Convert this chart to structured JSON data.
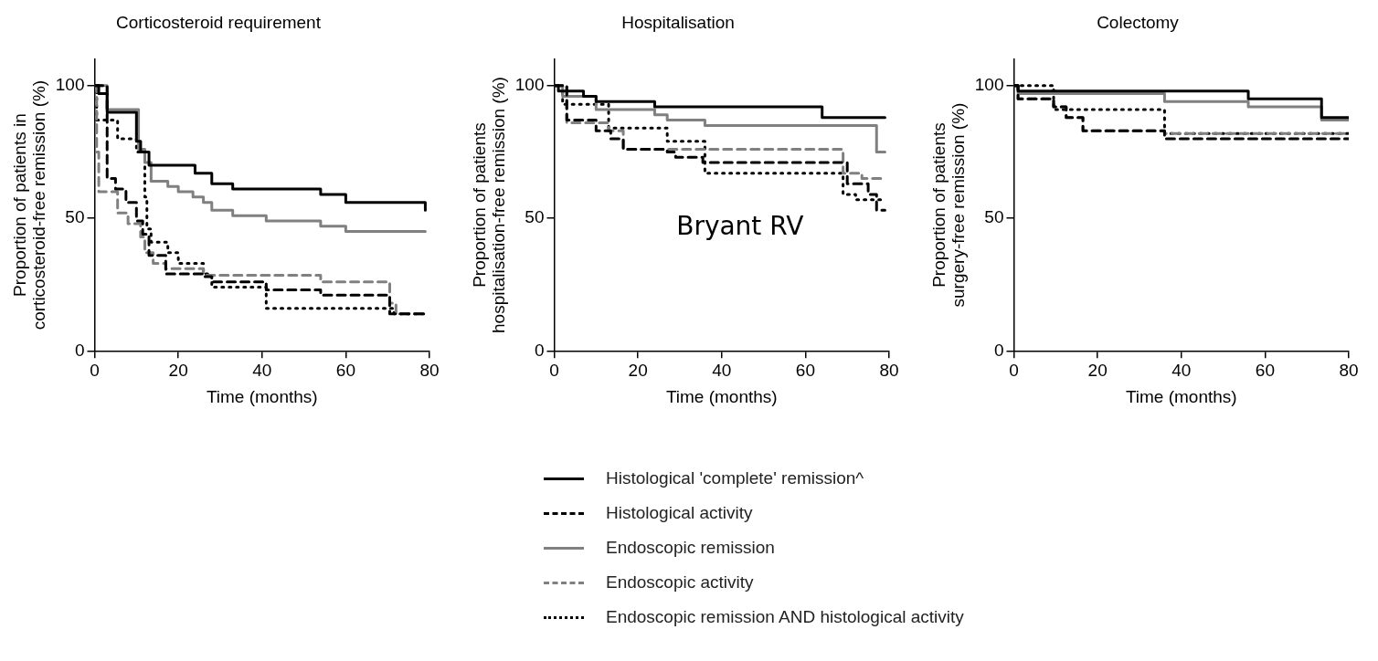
{
  "chart_data": [
    {
      "type": "step",
      "title": "Corticosteroid requirement",
      "xlabel": "Time (months)",
      "ylabel": "Proportion of patients in\ncorticosteroid-free remission (%)",
      "xlim": [
        0,
        80
      ],
      "xticks": [
        0,
        20,
        40,
        60,
        80
      ],
      "ylim": [
        0,
        110
      ],
      "yticks": [
        0,
        50,
        100
      ],
      "grid": false,
      "legend": "bottom",
      "series": [
        {
          "name": "Histological 'complete' remission^",
          "color": "#000000",
          "line_style": "solid",
          "x": [
            0,
            1,
            3,
            8,
            10,
            11,
            13,
            20,
            24,
            28,
            33,
            54,
            60,
            79
          ],
          "values": [
            100,
            97,
            90,
            90,
            79,
            75,
            70,
            70,
            67,
            63,
            61,
            59,
            56,
            53
          ]
        },
        {
          "name": "Histological activity",
          "color": "#000000",
          "line_style": "dashed",
          "x": [
            0,
            3,
            5,
            7.5,
            10,
            11.5,
            13,
            17,
            26,
            28,
            41,
            54,
            70.5,
            79
          ],
          "values": [
            100,
            65,
            61,
            56,
            49,
            44,
            36,
            29,
            28,
            26,
            23,
            21,
            14,
            14
          ]
        },
        {
          "name": "Endoscopic remission",
          "color": "#808080",
          "line_style": "solid",
          "x": [
            0,
            3,
            10.5,
            12,
            13.5,
            17.5,
            20,
            23.5,
            26,
            28,
            33,
            41,
            54,
            60,
            79
          ],
          "values": [
            100,
            91,
            76,
            71,
            64,
            62,
            60,
            58,
            56,
            53,
            51,
            49,
            47,
            45,
            45
          ]
        },
        {
          "name": "Endoscopic activity",
          "color": "#808080",
          "line_style": "dashed",
          "x": [
            0,
            0.5,
            1,
            5.5,
            8,
            11,
            12,
            14,
            17,
            26,
            54,
            70.5,
            72,
            79
          ],
          "values": [
            100,
            75,
            60,
            52,
            48,
            43,
            37,
            33,
            31,
            28.5,
            26,
            18,
            14,
            14
          ]
        },
        {
          "name": "Endoscopic remission AND histological activity",
          "color": "#000000",
          "line_style": "dotted",
          "x": [
            0,
            0.5,
            5.5,
            10,
            12,
            12.5,
            13.5,
            17.5,
            20,
            26,
            28,
            41,
            71.5,
            79
          ],
          "values": [
            100,
            87,
            80,
            75,
            58,
            46,
            41,
            37,
            33,
            29,
            24,
            16,
            14,
            14
          ]
        }
      ]
    },
    {
      "type": "step",
      "title": "Hospitalisation",
      "xlabel": "Time (months)",
      "ylabel": "Proportion of patients\nhospitalisation-free remission (%)",
      "xlim": [
        0,
        80
      ],
      "xticks": [
        0,
        20,
        40,
        60,
        80
      ],
      "ylim": [
        0,
        110
      ],
      "yticks": [
        0,
        50,
        100
      ],
      "grid": false,
      "annotations": [
        "Bryant RV"
      ],
      "series": [
        {
          "color": "#000000",
          "line_style": "solid",
          "x": [
            0,
            1,
            7,
            10,
            24,
            64,
            79
          ],
          "values": [
            100,
            98,
            96,
            94,
            92,
            88,
            88
          ]
        },
        {
          "color": "#000000",
          "line_style": "dashed",
          "x": [
            0,
            3,
            10,
            13.5,
            16.5,
            27,
            29,
            35.5,
            70,
            75,
            77,
            79
          ],
          "values": [
            100,
            87,
            83,
            80,
            76,
            75,
            73,
            71,
            63,
            59,
            53,
            53
          ]
        },
        {
          "color": "#808080",
          "line_style": "solid",
          "x": [
            0,
            2,
            10,
            24,
            27,
            36,
            77,
            79
          ],
          "values": [
            100,
            96,
            91,
            89,
            87,
            85,
            75,
            75
          ]
        },
        {
          "color": "#808080",
          "line_style": "dashed",
          "x": [
            0,
            3,
            13,
            16.5,
            69,
            73.5,
            79
          ],
          "values": [
            100,
            86,
            83,
            76,
            67,
            65,
            65
          ]
        },
        {
          "color": "#000000",
          "line_style": "dotted",
          "x": [
            0,
            2,
            13,
            27,
            36,
            69,
            72,
            78
          ],
          "values": [
            100,
            93,
            84,
            79,
            67,
            59,
            57,
            57
          ]
        }
      ]
    },
    {
      "type": "step",
      "title": "Colectomy",
      "xlabel": "Time (months)",
      "ylabel": "Proportion of patients\nsurgery-free remission (%)",
      "xlim": [
        0,
        80
      ],
      "xticks": [
        0,
        20,
        40,
        60,
        80
      ],
      "ylim": [
        0,
        110
      ],
      "yticks": [
        0,
        50,
        100
      ],
      "grid": false,
      "legend": false,
      "series": [
        {
          "color": "#000000",
          "line_style": "solid",
          "x": [
            0,
            1,
            56,
            73.5,
            80
          ],
          "values": [
            100,
            98,
            95,
            88,
            88
          ]
        },
        {
          "color": "#000000",
          "line_style": "dashed",
          "x": [
            0,
            1,
            9.5,
            12.5,
            16.5,
            36,
            80
          ],
          "values": [
            100,
            95,
            92,
            88,
            83,
            80,
            80
          ]
        },
        {
          "color": "#808080",
          "line_style": "solid",
          "x": [
            0,
            1,
            36,
            56,
            73.5,
            80
          ],
          "values": [
            100,
            97,
            94,
            92,
            87,
            87
          ]
        },
        {
          "color": "#808080",
          "line_style": "dashed",
          "x": [
            0,
            1,
            9.5,
            12.5,
            16.5,
            36,
            80
          ],
          "values": [
            100,
            95,
            92,
            88,
            83,
            82,
            82
          ]
        },
        {
          "color": "#000000",
          "line_style": "dotted",
          "x": [
            0,
            9.5,
            36,
            80
          ],
          "values": [
            100,
            91,
            82,
            82
          ]
        }
      ]
    }
  ]
}
